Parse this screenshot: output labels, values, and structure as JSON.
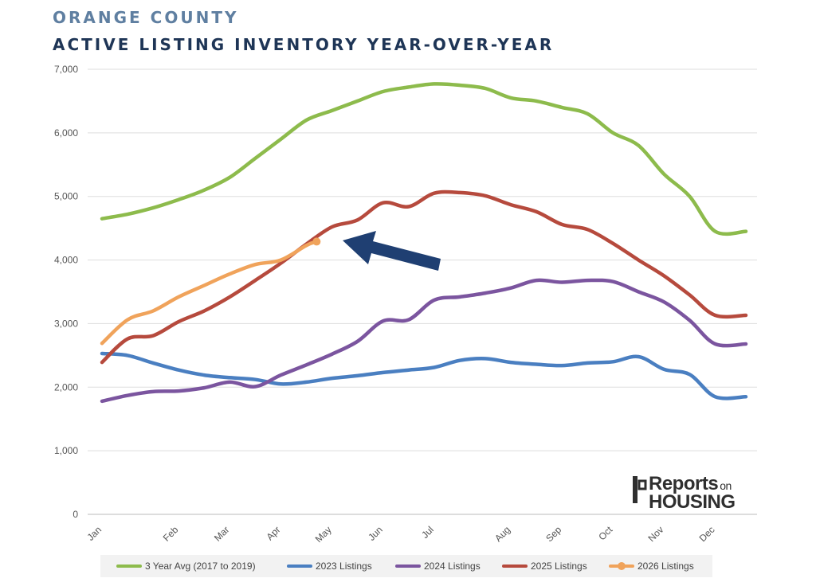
{
  "title": {
    "line1": "ORANGE COUNTY",
    "line2": "ACTIVE LISTING INVENTORY YEAR-OVER-YEAR"
  },
  "logo": {
    "word1": "Reports",
    "word2": "on",
    "word3": "HOUSING"
  },
  "chart_data": {
    "type": "line",
    "title": "ACTIVE LISTING INVENTORY YEAR-OVER-YEAR",
    "xlabel": "",
    "ylabel": "",
    "ylim": [
      0,
      7000
    ],
    "yticks": [
      0,
      1000,
      2000,
      3000,
      4000,
      5000,
      6000,
      7000
    ],
    "ytick_labels": [
      "0",
      "1,000",
      "2,000",
      "3,000",
      "4,000",
      "5,000",
      "6,000",
      "7,000"
    ],
    "xlim": [
      0,
      12.6
    ],
    "categories": [
      "Jan",
      "Feb",
      "Mar",
      "Apr",
      "May",
      "Jun",
      "Jul",
      "Aug",
      "Sep",
      "Oct",
      "Nov",
      "Dec"
    ],
    "category_positions": [
      0,
      1.5,
      2.5,
      3.5,
      4.5,
      5.5,
      6.5,
      8.0,
      9.0,
      10.0,
      11.0,
      12.0
    ],
    "grid": "horizontal",
    "legend_position": "bottom",
    "annotation": "arrow pointing to latest 2026 value",
    "series": [
      {
        "name": "3 Year Avg (2017 to 2019)",
        "color": "#8dbb4c",
        "x": [
          0,
          0.5,
          1,
          1.5,
          2,
          2.5,
          3,
          3.5,
          4,
          4.5,
          5,
          5.5,
          6,
          6.5,
          7,
          7.5,
          8,
          8.5,
          9,
          9.5,
          10,
          10.5,
          11,
          11.5,
          12,
          12.6
        ],
        "values": [
          4650,
          4720,
          4820,
          4950,
          5100,
          5300,
          5600,
          5900,
          6200,
          6350,
          6500,
          6650,
          6720,
          6770,
          6750,
          6700,
          6550,
          6500,
          6400,
          6300,
          6000,
          5800,
          5350,
          5000,
          4450,
          4450
        ]
      },
      {
        "name": "2023 Listings",
        "color": "#4a7fc1",
        "x": [
          0,
          0.5,
          1,
          1.5,
          2,
          2.5,
          3,
          3.5,
          4,
          4.5,
          5,
          5.5,
          6,
          6.5,
          7,
          7.5,
          8,
          8.5,
          9,
          9.5,
          10,
          10.5,
          11,
          11.5,
          12,
          12.6
        ],
        "values": [
          2530,
          2500,
          2380,
          2270,
          2190,
          2150,
          2120,
          2050,
          2080,
          2140,
          2180,
          2230,
          2270,
          2310,
          2420,
          2450,
          2390,
          2360,
          2340,
          2380,
          2400,
          2480,
          2280,
          2200,
          1850,
          1850
        ]
      },
      {
        "name": "2024 Listings",
        "color": "#7b559f",
        "x": [
          0,
          0.5,
          1,
          1.5,
          2,
          2.5,
          3,
          3.5,
          4,
          4.5,
          5,
          5.5,
          6,
          6.5,
          7,
          7.5,
          8,
          8.5,
          9,
          9.5,
          10,
          10.5,
          11,
          11.5,
          12,
          12.6
        ],
        "values": [
          1780,
          1870,
          1930,
          1940,
          1990,
          2080,
          2010,
          2190,
          2350,
          2520,
          2720,
          3040,
          3060,
          3370,
          3420,
          3480,
          3560,
          3680,
          3650,
          3680,
          3660,
          3500,
          3340,
          3050,
          2680,
          2680
        ]
      },
      {
        "name": "2025 Listings",
        "color": "#b64a3d",
        "x": [
          0,
          0.5,
          1,
          1.5,
          2,
          2.5,
          3,
          3.5,
          4,
          4.5,
          5,
          5.5,
          6,
          6.5,
          7,
          7.5,
          8,
          8.5,
          9,
          9.5,
          10,
          10.5,
          11,
          11.5,
          12,
          12.6
        ],
        "values": [
          2390,
          2760,
          2810,
          3030,
          3200,
          3420,
          3680,
          3950,
          4250,
          4520,
          4630,
          4900,
          4840,
          5050,
          5060,
          5010,
          4870,
          4760,
          4560,
          4480,
          4260,
          4000,
          3750,
          3450,
          3130,
          3130
        ]
      },
      {
        "name": "2026 Listings",
        "color": "#f0a35b",
        "x": [
          0,
          0.5,
          1,
          1.5,
          2,
          2.5,
          3,
          3.5,
          4,
          4.2
        ],
        "values": [
          2690,
          3060,
          3200,
          3420,
          3600,
          3780,
          3930,
          4000,
          4230,
          4290
        ]
      }
    ]
  }
}
